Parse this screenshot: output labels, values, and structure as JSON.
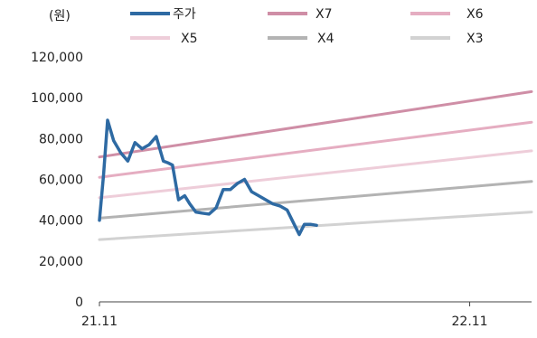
{
  "chart_data": {
    "type": "line",
    "unit_label": "(원)",
    "xlim": [
      "2021-11",
      "2023-01"
    ],
    "x_ticks": [
      "21.11",
      "22.11"
    ],
    "ylim": [
      0,
      120000
    ],
    "y_ticks": [
      "0",
      "20,000",
      "40,000",
      "60,000",
      "80,000",
      "100,000",
      "120,000"
    ],
    "y_tick_values": [
      0,
      20000,
      40000,
      60000,
      80000,
      100000,
      120000
    ],
    "legend": {
      "placement": "top",
      "columns": 3
    },
    "grid": false,
    "series": [
      {
        "name": "주가",
        "color": "#2e6aa3",
        "x": [
          "2021-11-01",
          "2021-11-05",
          "2021-11-09",
          "2021-11-15",
          "2021-11-22",
          "2021-11-29",
          "2021-12-06",
          "2021-12-13",
          "2021-12-20",
          "2021-12-27",
          "2022-01-03",
          "2022-01-08",
          "2022-01-12",
          "2022-01-18",
          "2022-01-24",
          "2022-01-29",
          "2022-02-04",
          "2022-02-10",
          "2022-02-17",
          "2022-02-24",
          "2022-03-03",
          "2022-03-10",
          "2022-03-17",
          "2022-03-24",
          "2022-03-31",
          "2022-04-07",
          "2022-04-14",
          "2022-04-21",
          "2022-04-28",
          "2022-05-05",
          "2022-05-12",
          "2022-05-17",
          "2022-05-22",
          "2022-05-28",
          "2022-06-03"
        ],
        "values": [
          40000,
          62000,
          89000,
          79000,
          73000,
          69000,
          78000,
          75000,
          77000,
          81000,
          69000,
          68000,
          67000,
          50000,
          52000,
          48000,
          44000,
          43500,
          43000,
          46000,
          55000,
          55000,
          58000,
          60000,
          54000,
          52000,
          50000,
          48000,
          47000,
          45000,
          38000,
          33000,
          38000,
          38000,
          37500
        ]
      },
      {
        "name": "X7",
        "color": "#cf8ea6",
        "x": [
          "2021-11-01",
          "2023-01-01"
        ],
        "values": [
          71000,
          103000
        ]
      },
      {
        "name": "X6",
        "color": "#e5adc1",
        "x": [
          "2021-11-01",
          "2023-01-01"
        ],
        "values": [
          61000,
          88000
        ]
      },
      {
        "name": "X5",
        "color": "#eecdd9",
        "x": [
          "2021-11-01",
          "2023-01-01"
        ],
        "values": [
          51000,
          74000
        ]
      },
      {
        "name": "X4",
        "color": "#b3b3b3",
        "x": [
          "2021-11-01",
          "2023-01-01"
        ],
        "values": [
          41000,
          59000
        ]
      },
      {
        "name": "X3",
        "color": "#d2d2d2",
        "x": [
          "2021-11-01",
          "2023-01-01"
        ],
        "values": [
          30500,
          44000
        ]
      }
    ]
  }
}
